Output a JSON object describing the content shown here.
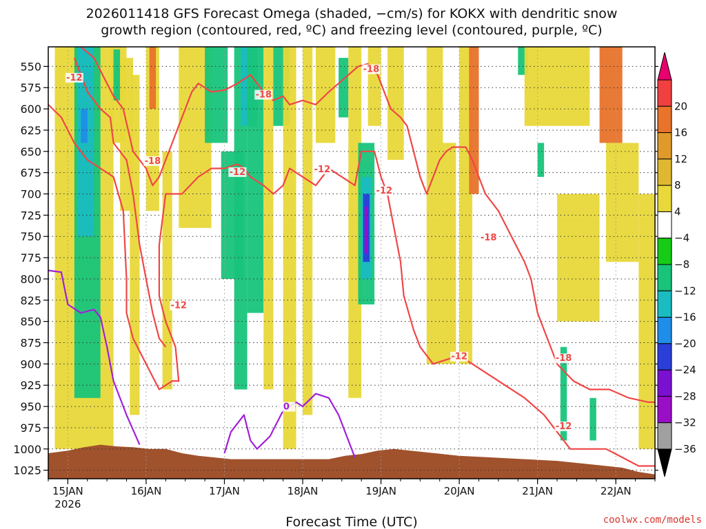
{
  "chart_data": {
    "type": "heatmap",
    "title_line1": "2026011418 GFS Forecast Omega (shaded, −cm/s) for KOKX with dendritic snow",
    "title_line2": "growth region (contoured, red, ºC) and freezing level (contoured, purple, ºC)",
    "xlabel": "Forecast Time (UTC)",
    "credit": "coolwx.com/models",
    "x_range_hours": [
      -6,
      180
    ],
    "x_ticks": [
      {
        "hour": 0,
        "label": "15JAN",
        "sub": "2026"
      },
      {
        "hour": 24,
        "label": "16JAN",
        "sub": ""
      },
      {
        "hour": 48,
        "label": "17JAN",
        "sub": ""
      },
      {
        "hour": 72,
        "label": "18JAN",
        "sub": ""
      },
      {
        "hour": 96,
        "label": "19JAN",
        "sub": ""
      },
      {
        "hour": 120,
        "label": "20JAN",
        "sub": ""
      },
      {
        "hour": 144,
        "label": "21JAN",
        "sub": ""
      },
      {
        "hour": 168,
        "label": "22JAN",
        "sub": ""
      }
    ],
    "y_range_hpa": [
      1035,
      527
    ],
    "y_ticks": [
      550,
      575,
      600,
      625,
      650,
      675,
      700,
      725,
      750,
      775,
      800,
      825,
      850,
      875,
      900,
      925,
      950,
      975,
      1000,
      1025
    ],
    "grid": true,
    "colorbar": {
      "labels": [
        "20",
        "16",
        "12",
        "8",
        "4",
        "−4",
        "−8",
        "−12",
        "−16",
        "−20",
        "−24",
        "−28",
        "−32",
        "−36"
      ],
      "bins": [
        {
          "color": "#e8006e",
          "shape": "top-triangle"
        },
        {
          "color": "#f04040"
        },
        {
          "color": "#e8732a"
        },
        {
          "color": "#e09a2a"
        },
        {
          "color": "#e0b830"
        },
        {
          "color": "#e8d83a"
        },
        {
          "color": "#ffffff"
        },
        {
          "color": "#16cc16"
        },
        {
          "color": "#18c47a"
        },
        {
          "color": "#1abcc0"
        },
        {
          "color": "#1f8ee8"
        },
        {
          "color": "#2a3ed8"
        },
        {
          "color": "#7a10d0"
        },
        {
          "color": "#9a0ec8"
        },
        {
          "color": "#a0a0a0"
        },
        {
          "color": "#000000",
          "shape": "bottom-triangle"
        }
      ]
    },
    "omega_regions": [
      {
        "h0": -4,
        "h1": 14,
        "p0": 527,
        "p1": 1000,
        "value": 5
      },
      {
        "h0": 2,
        "h1": 10,
        "p0": 527,
        "p1": 940,
        "value": -8
      },
      {
        "h0": 3,
        "h1": 8,
        "p0": 527,
        "p1": 750,
        "value": -12
      },
      {
        "h0": 4,
        "h1": 6,
        "p0": 600,
        "p1": 640,
        "value": -16
      },
      {
        "h0": 13,
        "h1": 18,
        "p0": 527,
        "p1": 640,
        "value": 5
      },
      {
        "h0": 14,
        "h1": 16,
        "p0": 530,
        "p1": 590,
        "value": -8
      },
      {
        "h0": 16,
        "h1": 20,
        "p0": 540,
        "p1": 720,
        "value": 5
      },
      {
        "h0": 19,
        "h1": 22,
        "p0": 560,
        "p1": 960,
        "value": 5
      },
      {
        "h0": 24,
        "h1": 28,
        "p0": 527,
        "p1": 720,
        "value": 5
      },
      {
        "h0": 25,
        "h1": 27,
        "p0": 527,
        "p1": 600,
        "value": 12
      },
      {
        "h0": 29,
        "h1": 32,
        "p0": 650,
        "p1": 930,
        "value": 5
      },
      {
        "h0": 34,
        "h1": 44,
        "p0": 527,
        "p1": 740,
        "value": 5
      },
      {
        "h0": 42,
        "h1": 49,
        "p0": 527,
        "p1": 640,
        "value": -8
      },
      {
        "h0": 47,
        "h1": 54,
        "p0": 650,
        "p1": 800,
        "value": -8
      },
      {
        "h0": 51,
        "h1": 55,
        "p0": 527,
        "p1": 930,
        "value": -8
      },
      {
        "h0": 53,
        "h1": 58,
        "p0": 527,
        "p1": 620,
        "value": -12
      },
      {
        "h0": 55,
        "h1": 60,
        "p0": 527,
        "p1": 840,
        "value": -8
      },
      {
        "h0": 60,
        "h1": 63,
        "p0": 527,
        "p1": 930,
        "value": 5
      },
      {
        "h0": 63,
        "h1": 68,
        "p0": 527,
        "p1": 620,
        "value": -8
      },
      {
        "h0": 66,
        "h1": 70,
        "p0": 527,
        "p1": 1000,
        "value": 5
      },
      {
        "h0": 72,
        "h1": 75,
        "p0": 527,
        "p1": 960,
        "value": 5
      },
      {
        "h0": 76,
        "h1": 82,
        "p0": 527,
        "p1": 640,
        "value": 5
      },
      {
        "h0": 83,
        "h1": 86,
        "p0": 540,
        "p1": 610,
        "value": -8
      },
      {
        "h0": 86,
        "h1": 90,
        "p0": 527,
        "p1": 940,
        "value": 5
      },
      {
        "h0": 89,
        "h1": 94,
        "p0": 640,
        "p1": 830,
        "value": -8
      },
      {
        "h0": 90,
        "h1": 93,
        "p0": 680,
        "p1": 800,
        "value": -12
      },
      {
        "h0": 90.5,
        "h1": 92.5,
        "p0": 700,
        "p1": 780,
        "value": -20
      },
      {
        "h0": 91,
        "h1": 92,
        "p0": 715,
        "p1": 770,
        "value": -28
      },
      {
        "h0": 92,
        "h1": 96,
        "p0": 527,
        "p1": 620,
        "value": 5
      },
      {
        "h0": 98,
        "h1": 103,
        "p0": 527,
        "p1": 660,
        "value": 5
      },
      {
        "h0": 110,
        "h1": 115,
        "p0": 527,
        "p1": 900,
        "value": 5
      },
      {
        "h0": 115,
        "h1": 119,
        "p0": 640,
        "p1": 900,
        "value": 5
      },
      {
        "h0": 120,
        "h1": 124,
        "p0": 527,
        "p1": 900,
        "value": 5
      },
      {
        "h0": 123,
        "h1": 126,
        "p0": 527,
        "p1": 700,
        "value": 12
      },
      {
        "h0": 138,
        "h1": 141,
        "p0": 527,
        "p1": 560,
        "value": -8
      },
      {
        "h0": 140,
        "h1": 160,
        "p0": 527,
        "p1": 620,
        "value": 5
      },
      {
        "h0": 150,
        "h1": 163,
        "p0": 700,
        "p1": 850,
        "value": 5
      },
      {
        "h0": 163,
        "h1": 170,
        "p0": 527,
        "p1": 640,
        "value": 12
      },
      {
        "h0": 165,
        "h1": 175,
        "p0": 640,
        "p1": 780,
        "value": 5
      },
      {
        "h0": 144,
        "h1": 146,
        "p0": 640,
        "p1": 680,
        "value": -8
      },
      {
        "h0": 151,
        "h1": 153,
        "p0": 880,
        "p1": 990,
        "value": -8
      },
      {
        "h0": 160,
        "h1": 162,
        "p0": 940,
        "p1": 990,
        "value": -8
      },
      {
        "h0": 175,
        "h1": 180,
        "p0": 700,
        "p1": 1000,
        "value": 5
      }
    ],
    "contours": [
      {
        "name": "-12",
        "color": "#f04646",
        "points": [
          [
            -6,
            595
          ],
          [
            -2,
            610
          ],
          [
            2,
            640
          ],
          [
            6,
            660
          ],
          [
            10,
            670
          ],
          [
            14,
            680
          ],
          [
            17,
            720
          ],
          [
            18,
            800
          ],
          [
            18,
            840
          ],
          [
            20,
            870
          ],
          [
            24,
            900
          ],
          [
            28,
            930
          ],
          [
            32,
            920
          ],
          [
            34,
            920
          ],
          [
            33,
            880
          ],
          [
            30,
            850
          ],
          [
            28,
            820
          ],
          [
            28,
            760
          ],
          [
            30,
            700
          ],
          [
            35,
            700
          ],
          [
            40,
            680
          ],
          [
            44,
            670
          ],
          [
            48,
            670
          ],
          [
            52,
            665
          ],
          [
            54,
            670
          ],
          [
            56,
            680
          ],
          [
            60,
            690
          ],
          [
            63,
            700
          ],
          [
            66,
            690
          ],
          [
            68,
            670
          ],
          [
            72,
            680
          ],
          [
            76,
            690
          ],
          [
            80,
            670
          ],
          [
            84,
            680
          ],
          [
            88,
            690
          ],
          [
            90,
            650
          ],
          [
            94,
            650
          ],
          [
            96,
            680
          ],
          [
            98,
            700
          ],
          [
            100,
            740
          ],
          [
            102,
            780
          ],
          [
            103,
            820
          ],
          [
            106,
            860
          ],
          [
            108,
            880
          ],
          [
            112,
            900
          ],
          [
            116,
            895
          ],
          [
            120,
            890
          ],
          [
            124,
            900
          ],
          [
            128,
            910
          ],
          [
            134,
            925
          ],
          [
            140,
            940
          ],
          [
            146,
            960
          ],
          [
            150,
            980
          ],
          [
            154,
            1000
          ],
          [
            160,
            1000
          ],
          [
            165,
            1000
          ],
          [
            170,
            1010
          ],
          [
            175,
            1020
          ],
          [
            180,
            1020
          ]
        ]
      },
      {
        "name": "-12",
        "color": "#f04646",
        "points": [
          [
            2,
            540
          ],
          [
            4,
            560
          ],
          [
            6,
            580
          ],
          [
            8,
            590
          ],
          [
            10,
            600
          ],
          [
            13,
            610
          ],
          [
            14,
            640
          ],
          [
            18,
            660
          ],
          [
            20,
            700
          ],
          [
            22,
            760
          ],
          [
            24,
            800
          ],
          [
            26,
            840
          ],
          [
            28,
            870
          ],
          [
            30,
            880
          ]
        ]
      },
      {
        "name": "-18",
        "color": "#f04646",
        "points": [
          [
            4,
            527
          ],
          [
            8,
            540
          ],
          [
            10,
            555
          ],
          [
            12,
            570
          ],
          [
            14,
            585
          ],
          [
            17,
            600
          ],
          [
            20,
            650
          ],
          [
            24,
            670
          ],
          [
            26,
            690
          ],
          [
            28,
            680
          ],
          [
            30,
            660
          ],
          [
            32,
            640
          ],
          [
            34,
            620
          ],
          [
            36,
            600
          ],
          [
            38,
            580
          ],
          [
            40,
            570
          ],
          [
            44,
            580
          ],
          [
            48,
            578
          ],
          [
            52,
            570
          ],
          [
            56,
            560
          ],
          [
            58,
            570
          ],
          [
            60,
            580
          ],
          [
            63,
            590
          ],
          [
            66,
            585
          ],
          [
            68,
            595
          ],
          [
            72,
            590
          ],
          [
            76,
            595
          ],
          [
            80,
            580
          ],
          [
            83,
            570
          ],
          [
            86,
            560
          ],
          [
            89,
            550
          ],
          [
            92,
            547
          ],
          [
            95,
            560
          ],
          [
            97,
            580
          ],
          [
            99,
            600
          ],
          [
            102,
            610
          ],
          [
            104,
            620
          ],
          [
            106,
            650
          ],
          [
            108,
            680
          ],
          [
            110,
            700
          ],
          [
            112,
            680
          ],
          [
            114,
            660
          ],
          [
            116,
            650
          ],
          [
            118,
            645
          ],
          [
            120,
            645
          ],
          [
            122,
            645
          ],
          [
            124,
            660
          ],
          [
            126,
            680
          ],
          [
            128,
            700
          ],
          [
            132,
            720
          ],
          [
            136,
            750
          ],
          [
            140,
            780
          ],
          [
            142,
            800
          ],
          [
            144,
            840
          ],
          [
            146,
            860
          ],
          [
            150,
            900
          ],
          [
            155,
            920
          ],
          [
            160,
            930
          ],
          [
            166,
            930
          ],
          [
            172,
            940
          ],
          [
            178,
            945
          ],
          [
            180,
            945
          ]
        ]
      },
      {
        "name": "0",
        "color": "#a020d8",
        "points": [
          [
            -6,
            790
          ],
          [
            -2,
            792
          ],
          [
            0,
            830
          ],
          [
            4,
            840
          ],
          [
            8,
            836
          ],
          [
            10,
            845
          ],
          [
            12,
            880
          ],
          [
            14,
            920
          ],
          [
            18,
            960
          ],
          [
            22,
            995
          ]
        ]
      },
      {
        "name": "0",
        "color": "#a020d8",
        "points": [
          [
            48,
            1005
          ],
          [
            50,
            980
          ],
          [
            54,
            960
          ],
          [
            56,
            990
          ],
          [
            58,
            1000
          ],
          [
            62,
            985
          ],
          [
            66,
            955
          ],
          [
            70,
            945
          ],
          [
            72,
            950
          ],
          [
            76,
            935
          ],
          [
            80,
            940
          ],
          [
            83,
            960
          ],
          [
            86,
            990
          ],
          [
            88,
            1010
          ]
        ]
      }
    ],
    "contour_labels": [
      {
        "text": "-12",
        "h": 2,
        "p": 565,
        "color": "#f04646"
      },
      {
        "text": "-18",
        "h": 60,
        "p": 585,
        "color": "#f04646"
      },
      {
        "text": "-18",
        "h": 93,
        "p": 555,
        "color": "#f04646"
      },
      {
        "text": "-18",
        "h": 26,
        "p": 663,
        "color": "#f04646"
      },
      {
        "text": "-12",
        "h": 52,
        "p": 676,
        "color": "#f04646"
      },
      {
        "text": "-12",
        "h": 78,
        "p": 673,
        "color": "#f04646"
      },
      {
        "text": "-12",
        "h": 97,
        "p": 698,
        "color": "#f04646"
      },
      {
        "text": "-18",
        "h": 129,
        "p": 753,
        "color": "#f04646"
      },
      {
        "text": "-12",
        "h": 34,
        "p": 833,
        "color": "#f04646"
      },
      {
        "text": "-12",
        "h": 120,
        "p": 893,
        "color": "#f04646"
      },
      {
        "text": "-18",
        "h": 152,
        "p": 895,
        "color": "#f04646"
      },
      {
        "text": "-12",
        "h": 152,
        "p": 975,
        "color": "#f04646"
      },
      {
        "text": "0",
        "h": 67,
        "p": 952,
        "color": "#a020d8"
      }
    ],
    "terrain": {
      "color": "#a0522d",
      "points": [
        [
          -6,
          1005
        ],
        [
          0,
          1002
        ],
        [
          5,
          998
        ],
        [
          10,
          995
        ],
        [
          15,
          997
        ],
        [
          20,
          998
        ],
        [
          25,
          1000
        ],
        [
          30,
          1000
        ],
        [
          35,
          1005
        ],
        [
          40,
          1008
        ],
        [
          45,
          1010
        ],
        [
          50,
          1012
        ],
        [
          55,
          1012
        ],
        [
          60,
          1012
        ],
        [
          70,
          1012
        ],
        [
          80,
          1012
        ],
        [
          85,
          1008
        ],
        [
          90,
          1006
        ],
        [
          95,
          1002
        ],
        [
          100,
          1000
        ],
        [
          105,
          1002
        ],
        [
          110,
          1004
        ],
        [
          115,
          1006
        ],
        [
          120,
          1008
        ],
        [
          130,
          1010
        ],
        [
          140,
          1012
        ],
        [
          150,
          1014
        ],
        [
          160,
          1018
        ],
        [
          170,
          1022
        ],
        [
          175,
          1027
        ],
        [
          180,
          1030
        ]
      ]
    }
  }
}
